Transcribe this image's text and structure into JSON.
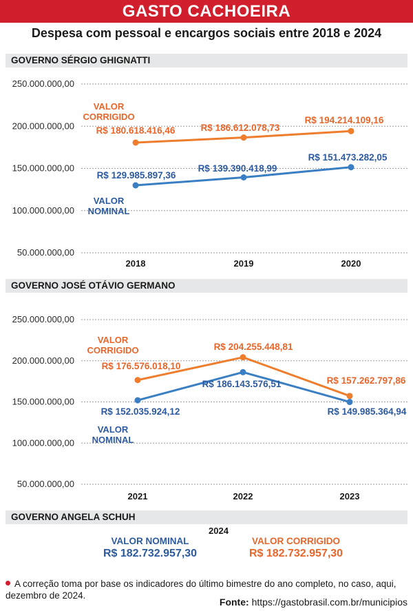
{
  "header": {
    "title": "GASTO CACHOEIRA",
    "subtitle": "Despesa com pessoal e encargos sociais entre 2018 e 2024"
  },
  "colors": {
    "nominal": "#3a7fc4",
    "corrigido": "#ef7d2e",
    "nominal_text": "#2c5aa0",
    "corrigido_text": "#e8662a",
    "brand": "#d11f2d"
  },
  "sections": [
    {
      "label": "GOVERNO SÉRGIO GHIGNATTI"
    },
    {
      "label": "GOVERNO JOSÉ OTÁVIO GERMANO"
    },
    {
      "label": "GOVERNO ANGELA SCHUH"
    }
  ],
  "chart_data": [
    {
      "type": "line",
      "title": "GOVERNO SÉRGIO GHIGNATTI",
      "categories": [
        "2018",
        "2019",
        "2020"
      ],
      "ylim": [
        50000000,
        250000000
      ],
      "yticks": [
        {
          "value": 250000000,
          "label": "250.000.000,00"
        },
        {
          "value": 200000000,
          "label": "200.000.000,00"
        },
        {
          "value": 150000000,
          "label": "150.000.000,00"
        },
        {
          "value": 100000000,
          "label": "100.000.000,00"
        },
        {
          "value": 50000000,
          "label": "50.000.000,00"
        }
      ],
      "series": [
        {
          "name": "VALOR CORRIGIDO",
          "name_lines": [
            "VALOR",
            "CORRIGIDO"
          ],
          "key": "corrigido",
          "values": [
            180618416.46,
            186612078.73,
            194214109.16
          ],
          "labels": [
            "R$ 180.618.416,46",
            "R$ 186.612.078,73",
            "R$ 194.214.109,16"
          ]
        },
        {
          "name": "VALOR NOMINAL",
          "name_lines": [
            "VALOR",
            "NOMINAL"
          ],
          "key": "nominal",
          "values": [
            129985897.36,
            139390418.99,
            151473282.05
          ],
          "labels": [
            "R$ 129.985.897,36",
            "R$ 139.390.418,99",
            "R$ 151.473.282,05"
          ]
        }
      ]
    },
    {
      "type": "line",
      "title": "GOVERNO JOSÉ OTÁVIO GERMANO",
      "categories": [
        "2021",
        "2022",
        "2023"
      ],
      "ylim": [
        50000000,
        250000000
      ],
      "yticks": [
        {
          "value": 250000000,
          "label": "250.000.000,00"
        },
        {
          "value": 200000000,
          "label": "200.000.000,00"
        },
        {
          "value": 150000000,
          "label": "150.000.000,00"
        },
        {
          "value": 100000000,
          "label": "100.000.000,00"
        },
        {
          "value": 50000000,
          "label": "50.000.000,00"
        }
      ],
      "series": [
        {
          "name": "VALOR CORRIGIDO",
          "name_lines": [
            "VALOR",
            "CORRIGIDO"
          ],
          "key": "corrigido",
          "values": [
            176576018.1,
            204255448.81,
            157262797.86
          ],
          "labels": [
            "R$ 176.576.018,10",
            "R$ 204.255.448,81",
            "R$ 157.262.797,86"
          ]
        },
        {
          "name": "VALOR NOMINAL",
          "name_lines": [
            "VALOR",
            "NOMINAL"
          ],
          "key": "nominal",
          "values": [
            152035924.12,
            186143576.51,
            149985364.94
          ],
          "labels": [
            "R$ 152.035.924,12",
            "R$ 186.143.576,51",
            "R$ 149.985.364,94"
          ]
        }
      ]
    }
  ],
  "summary_2024": {
    "year": "2024",
    "nominal": {
      "label": "VALOR NOMINAL",
      "value": "R$ 182.732.957,30"
    },
    "corrigido": {
      "label": "VALOR CORRIGIDO",
      "value": "R$ 182.732.957,30"
    }
  },
  "footer": {
    "note": "A correção toma por base os indicadores do último bimestre do ano completo, no caso, aqui, dezembro de 2024.",
    "source_label": "Fonte:",
    "source_url": "https://gastobrasil.com.br/municipios"
  }
}
